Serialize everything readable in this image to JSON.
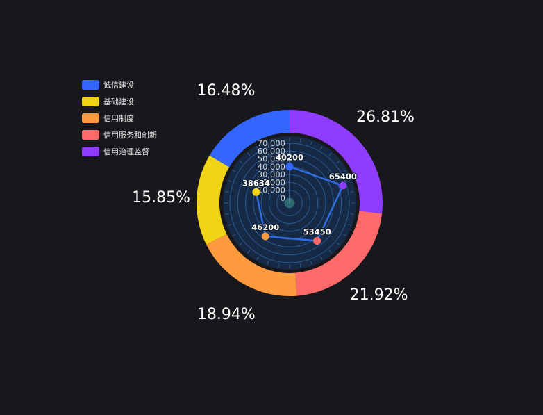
{
  "chart_data": {
    "type": "pie",
    "legend": {
      "position": "top-left",
      "items": [
        {
          "name": "诚信建设",
          "color": "#3366ff"
        },
        {
          "name": "基础建设",
          "color": "#f0d418"
        },
        {
          "name": "信用制度",
          "color": "#fd9a3e"
        },
        {
          "name": "信用服务和创新",
          "color": "#ff6b6b"
        },
        {
          "name": "信用治理监督",
          "color": "#8e3dfd"
        }
      ]
    },
    "donut": {
      "slices": [
        {
          "name": "信用治理监督",
          "value": 26.81,
          "label": "26.81%",
          "color": "#8e3dfd"
        },
        {
          "name": "信用服务和创新",
          "value": 21.92,
          "label": "21.92%",
          "color": "#ff6b6b"
        },
        {
          "name": "信用制度",
          "value": 18.94,
          "label": "18.94%",
          "color": "#fd9a3e"
        },
        {
          "name": "基础建设",
          "value": 15.85,
          "label": "15.85%",
          "color": "#f0d418"
        },
        {
          "name": "诚信建设",
          "value": 16.48,
          "label": "16.48%",
          "color": "#3366ff"
        }
      ]
    },
    "polar": {
      "type": "line",
      "radial_axis": {
        "min": 0,
        "max": 70000,
        "ticks": [
          "0",
          "10,000",
          "20,000",
          "30,000",
          "40,000",
          "50,000",
          "60,000",
          "70,000"
        ]
      },
      "series": [
        {
          "points": [
            {
              "category": "诚信建设",
              "value": 40200,
              "label": "40200",
              "color": "#3366ff"
            },
            {
              "category": "信用治理监督",
              "value": 65400,
              "label": "65400",
              "color": "#8e3dfd"
            },
            {
              "category": "信用服务和创新",
              "value": 53450,
              "label": "53450",
              "color": "#ff6b6b"
            },
            {
              "category": "信用制度",
              "value": 46200,
              "label": "46200",
              "color": "#fd9a3e"
            },
            {
              "category": "基础建设",
              "value": 38634,
              "label": "38634",
              "color": "#f0d418"
            }
          ]
        }
      ],
      "line_color": "#2f6ee6",
      "background_color": "#162a46"
    }
  }
}
